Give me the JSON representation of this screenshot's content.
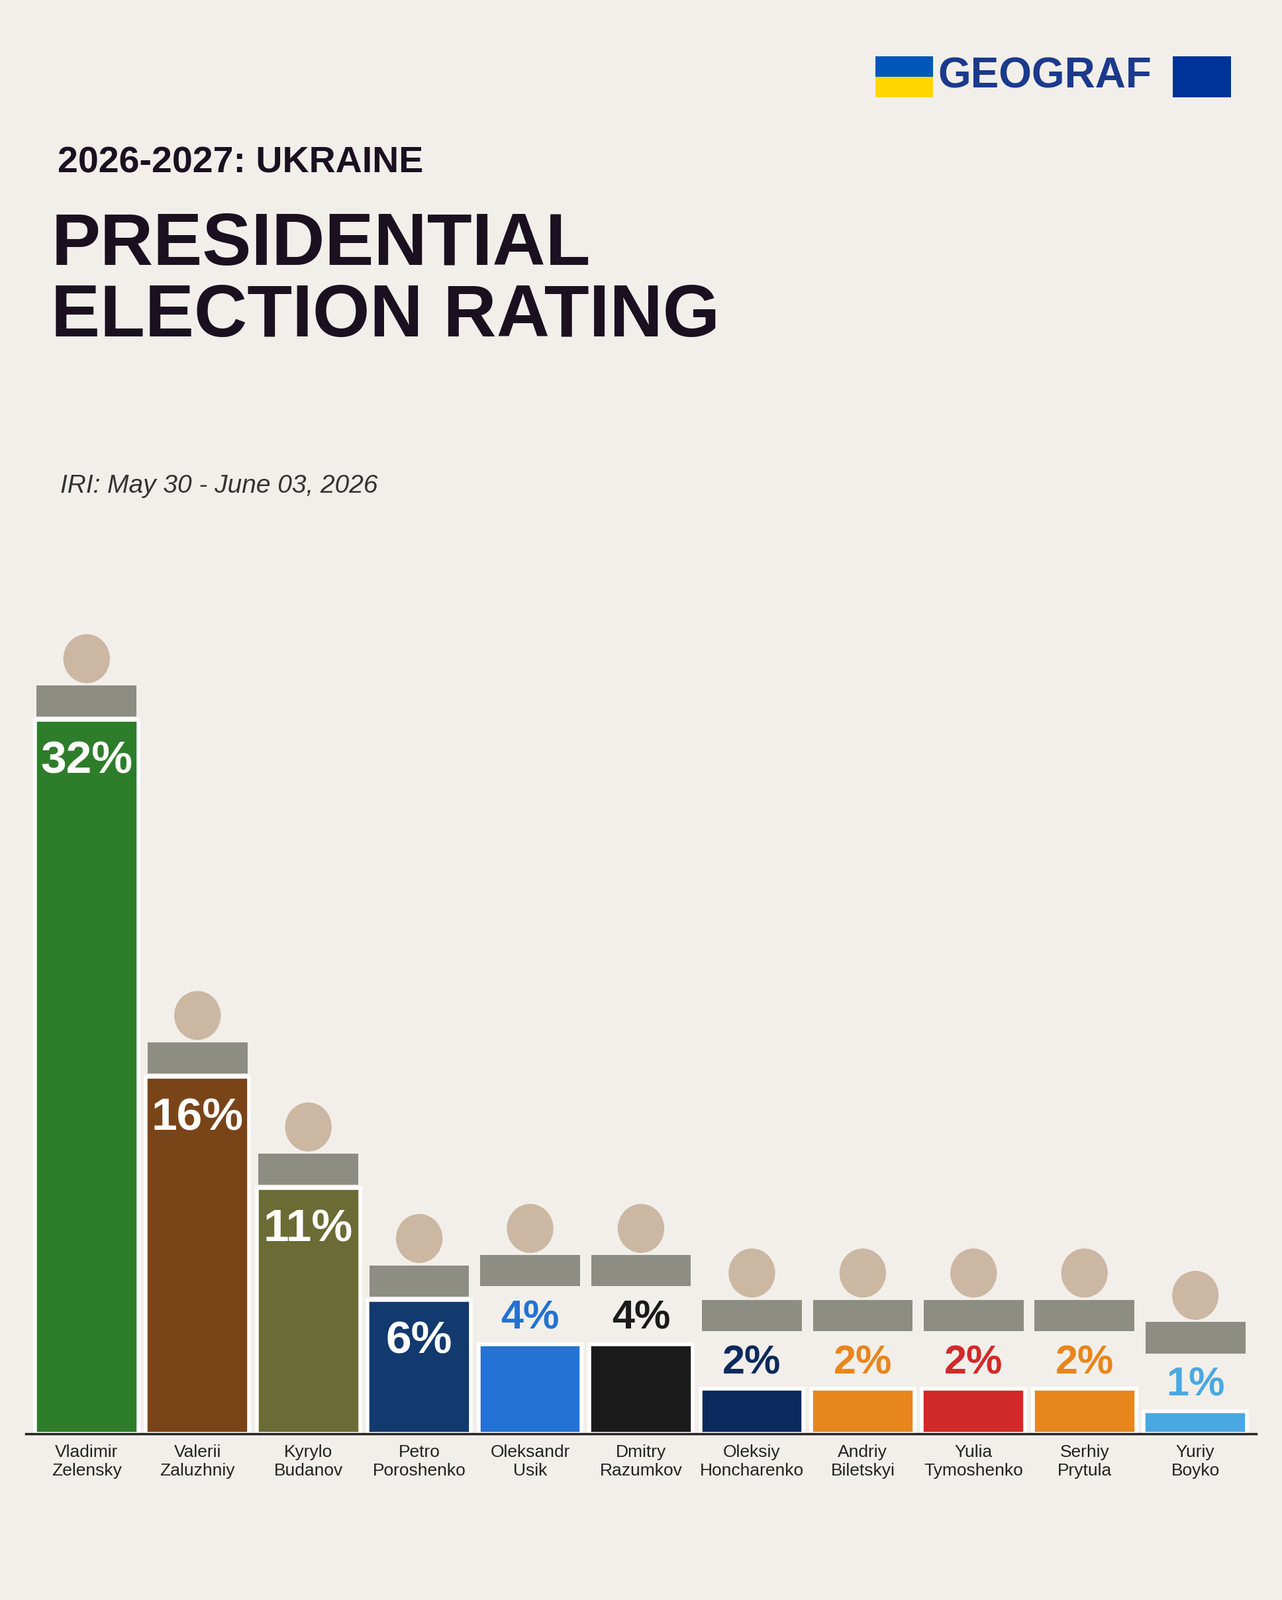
{
  "chart_data": {
    "type": "bar",
    "brand": "GEOGRAF",
    "supertitle": "2026-2027: UKRAINE",
    "title": "PRESIDENTIAL\nELECTION RATING",
    "subtitle": "IRI: May 30 - June 03, 2026",
    "categories": [
      "Vladimir\nZelensky",
      "Valerii\nZaluzhniy",
      "Kyrylo\nBudanov",
      "Petro\nPoroshenko",
      "Oleksandr\nUsik",
      "Dmitry\nRazumkov",
      "Oleksiy\nHoncharenko",
      "Andriy\nBiletskyi",
      "Yulia\nTymoshenko",
      "Serhiy\nPrytula",
      "Yuriy\nBoyko"
    ],
    "values": [
      32,
      16,
      11,
      6,
      4,
      4,
      2,
      2,
      2,
      2,
      1
    ],
    "value_labels": [
      "32%",
      "16%",
      "11%",
      "6%",
      "4%",
      "4%",
      "2%",
      "2%",
      "2%",
      "2%",
      "1%"
    ],
    "colors": [
      "#2e7d2a",
      "#7a4419",
      "#6b6b35",
      "#123a6e",
      "#2472d4",
      "#1a1a1a",
      "#0d2a5e",
      "#e8861e",
      "#d02a2a",
      "#e8861e",
      "#4aa8e0"
    ],
    "ylim": [
      0,
      40
    ],
    "data_labels": true,
    "tick_labels": "x",
    "grid": false
  }
}
